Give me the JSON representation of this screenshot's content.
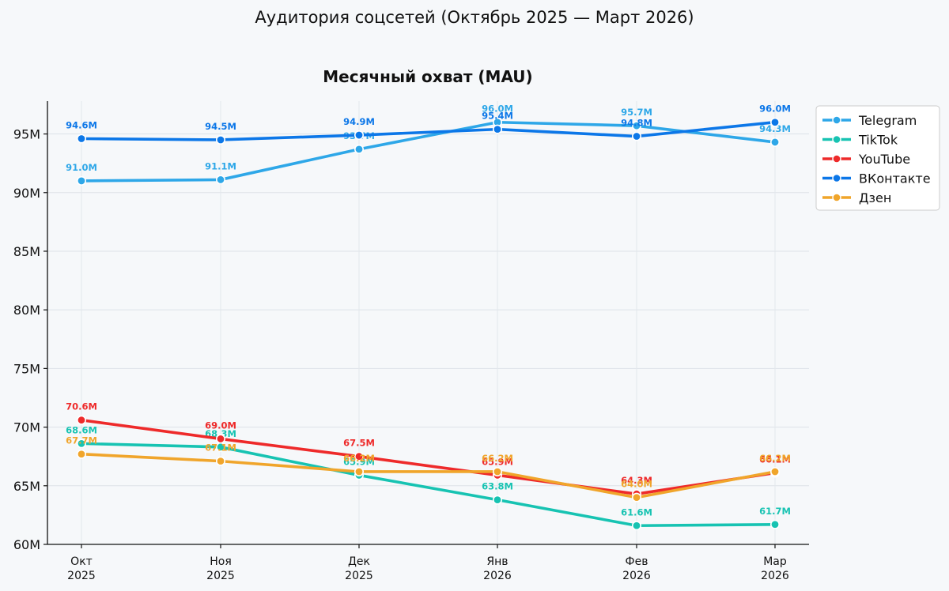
{
  "suptitle": "Аудитория соцсетей (Октябрь 2025 — Март 2026)",
  "chart_data": {
    "type": "line",
    "title": "Месячный охват (MAU)",
    "xlabel": "",
    "ylabel": "",
    "categories": [
      [
        "Окт",
        "2025"
      ],
      [
        "Ноя",
        "2025"
      ],
      [
        "Дек",
        "2025"
      ],
      [
        "Янв",
        "2026"
      ],
      [
        "Фев",
        "2026"
      ],
      [
        "Мар",
        "2026"
      ]
    ],
    "ylim": [
      60,
      97.8
    ],
    "yticks": [
      60,
      65,
      70,
      75,
      80,
      85,
      90,
      95
    ],
    "ytick_labels": [
      "60M",
      "65M",
      "70M",
      "75M",
      "80M",
      "85M",
      "90M",
      "95M"
    ],
    "grid": true,
    "legend_position": "top-right",
    "series": [
      {
        "name": "Telegram",
        "color": "#2ea7e8",
        "values": [
          91.0,
          91.1,
          93.7,
          96.0,
          95.7,
          94.3
        ],
        "labels": [
          "91.0M",
          "91.1M",
          "93.7M",
          "96.0M",
          "95.7M",
          "94.3M"
        ]
      },
      {
        "name": "TikTok",
        "color": "#17c3b2",
        "values": [
          68.6,
          68.3,
          65.9,
          63.8,
          61.6,
          61.7
        ],
        "labels": [
          "68.6M",
          "68.3M",
          "65.9M",
          "63.8M",
          "61.6M",
          "61.7M"
        ]
      },
      {
        "name": "YouTube",
        "color": "#ee2a2a",
        "values": [
          70.6,
          69.0,
          67.5,
          65.9,
          64.3,
          66.1
        ],
        "labels": [
          "70.6M",
          "69.0M",
          "67.5M",
          "65.9M",
          "64.3M",
          "66.1M"
        ]
      },
      {
        "name": "ВКонтакте",
        "color": "#0c77e8",
        "values": [
          94.6,
          94.5,
          94.9,
          95.4,
          94.8,
          96.0
        ],
        "labels": [
          "94.6M",
          "94.5M",
          "94.9M",
          "95.4M",
          "94.8M",
          "96.0M"
        ]
      },
      {
        "name": "Дзен",
        "color": "#f0a52b",
        "values": [
          67.7,
          67.1,
          66.2,
          66.2,
          64.0,
          66.2
        ],
        "labels": [
          "67.7M",
          "67.1M",
          "66.2M",
          "66.2M",
          "64.0M",
          "66.2M"
        ]
      }
    ]
  }
}
